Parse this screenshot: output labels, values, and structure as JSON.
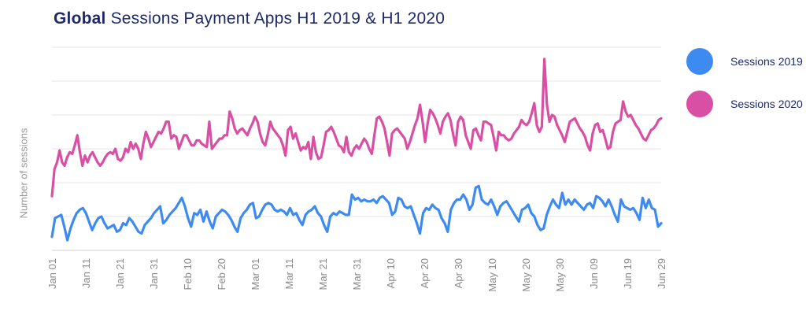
{
  "chart_data": {
    "type": "line",
    "title_bold": "Global",
    "title_rest": " Sessions Payment Apps H1 2019 & H1 2020",
    "xlabel": "",
    "ylabel": "Number of sessions",
    "ylim": [
      0,
      6
    ],
    "grid": true,
    "legend_position": "right",
    "tick_labels": [
      "Jan 01",
      "Jan 11",
      "Jan 21",
      "Jan 31",
      "Feb 10",
      "Feb 20",
      "Mar 01",
      "Mar 11",
      "Mar 21",
      "Mar 31",
      "Apr 10",
      "Apr 20",
      "Apr 30",
      "May 10",
      "May 20",
      "May 30",
      "Jun 09",
      "Jun 19",
      "Jun 29"
    ],
    "series": [
      {
        "name": "Sessions 2019",
        "color": "#3d8bf0",
        "values": [
          0.4,
          0.95,
          1.0,
          1.05,
          0.7,
          0.3,
          0.65,
          0.9,
          1.1,
          1.2,
          1.25,
          1.1,
          0.85,
          0.6,
          0.8,
          0.95,
          1.0,
          0.8,
          0.65,
          0.7,
          0.75,
          0.55,
          0.6,
          0.8,
          0.75,
          0.95,
          0.85,
          0.7,
          0.55,
          0.5,
          0.75,
          0.85,
          0.95,
          1.1,
          1.2,
          1.3,
          0.8,
          0.9,
          1.05,
          1.15,
          1.25,
          1.4,
          1.55,
          1.3,
          0.95,
          0.7,
          1.1,
          1.05,
          1.2,
          0.85,
          1.15,
          0.85,
          0.65,
          1.0,
          1.1,
          1.2,
          1.15,
          1.05,
          0.9,
          0.7,
          0.55,
          0.95,
          1.1,
          1.2,
          1.35,
          1.4,
          0.95,
          1.0,
          1.2,
          1.35,
          1.4,
          1.35,
          1.2,
          1.15,
          1.2,
          1.15,
          1.05,
          1.25,
          1.05,
          1.1,
          0.9,
          0.75,
          1.05,
          1.15,
          1.2,
          1.3,
          1.1,
          1.0,
          0.75,
          0.55,
          1.0,
          1.1,
          1.05,
          1.15,
          1.1,
          1.05,
          1.05,
          1.65,
          1.5,
          1.55,
          1.45,
          1.5,
          1.45,
          1.45,
          1.5,
          1.4,
          1.55,
          1.6,
          1.5,
          1.4,
          1.05,
          1.15,
          1.55,
          1.5,
          1.3,
          1.25,
          1.3,
          1.05,
          0.8,
          0.5,
          1.1,
          1.25,
          1.2,
          1.35,
          1.25,
          1.2,
          0.95,
          0.8,
          0.55,
          1.2,
          1.4,
          1.5,
          1.5,
          1.65,
          1.5,
          1.2,
          1.35,
          1.85,
          1.9,
          1.5,
          1.4,
          1.35,
          1.5,
          1.3,
          1.05,
          1.3,
          1.4,
          1.45,
          1.3,
          1.15,
          1.0,
          0.85,
          1.2,
          1.25,
          1.35,
          1.1,
          1.0,
          0.75,
          0.6,
          0.65,
          1.05,
          1.3,
          1.5,
          1.35,
          1.25,
          1.7,
          1.35,
          1.5,
          1.35,
          1.5,
          1.4,
          1.3,
          1.2,
          1.35,
          1.4,
          1.25,
          1.6,
          1.55,
          1.45,
          1.3,
          1.5,
          1.3,
          1.05,
          0.85,
          1.5,
          1.3,
          1.25,
          1.2,
          1.25,
          1.1,
          0.9,
          1.55,
          1.25,
          1.5,
          1.25,
          1.2,
          0.7,
          0.8
        ],
        "end_labels": [
          "Jan 01",
          "Jun 29"
        ]
      },
      {
        "name": "Sessions 2020",
        "color": "#d94fa4",
        "values": [
          1.6,
          2.4,
          2.6,
          2.95,
          2.6,
          2.5,
          2.75,
          2.9,
          2.85,
          3.1,
          3.4,
          2.9,
          2.5,
          2.8,
          2.6,
          2.8,
          2.9,
          2.75,
          2.6,
          2.5,
          2.6,
          2.75,
          2.85,
          2.9,
          2.85,
          3.0,
          2.7,
          2.65,
          2.75,
          3.0,
          2.9,
          3.2,
          3.0,
          3.15,
          3.0,
          2.7,
          3.15,
          3.5,
          3.3,
          3.05,
          3.2,
          3.35,
          3.5,
          3.45,
          3.6,
          3.8,
          3.8,
          3.3,
          3.4,
          3.35,
          3.0,
          3.2,
          3.4,
          3.4,
          3.25,
          3.1,
          3.1,
          3.25,
          3.25,
          3.15,
          3.1,
          3.05,
          3.8,
          3.0,
          3.1,
          3.2,
          3.3,
          3.3,
          3.4,
          3.4,
          4.1,
          3.9,
          3.6,
          3.45,
          3.55,
          3.6,
          3.5,
          3.4,
          3.6,
          3.75,
          3.95,
          3.8,
          3.45,
          3.2,
          3.1,
          3.4,
          3.8,
          3.6,
          3.5,
          3.4,
          3.3,
          3.1,
          2.8,
          3.55,
          3.65,
          3.3,
          3.45,
          3.2,
          2.95,
          3.05,
          3.0,
          3.2,
          2.7,
          3.35,
          2.9,
          2.7,
          2.75,
          3.1,
          3.5,
          3.55,
          3.65,
          3.5,
          3.3,
          3.1,
          3.05,
          2.9,
          3.35,
          2.9,
          2.8,
          3.0,
          3.1,
          3.0,
          3.15,
          3.3,
          3.2,
          3.0,
          2.85,
          3.4,
          3.9,
          3.95,
          3.8,
          3.6,
          3.2,
          2.8,
          3.45,
          3.55,
          3.6,
          3.5,
          3.4,
          3.3,
          3.0,
          3.2,
          3.45,
          3.7,
          3.9,
          4.3,
          3.8,
          3.2,
          3.75,
          4.15,
          4.05,
          3.9,
          3.7,
          3.45,
          3.8,
          3.95,
          4.05,
          3.85,
          3.45,
          3.1,
          3.8,
          3.95,
          3.85,
          3.4,
          3.2,
          3.0,
          3.55,
          3.6,
          3.4,
          3.25,
          3.8,
          3.8,
          3.75,
          3.7,
          3.35,
          2.95,
          3.5,
          3.4,
          3.4,
          3.3,
          3.25,
          3.3,
          3.45,
          3.55,
          3.65,
          3.85,
          3.75,
          3.7,
          3.8,
          4.05,
          4.35,
          3.7,
          3.5,
          3.65,
          5.65,
          4.3,
          3.8,
          4.0,
          3.95,
          3.7,
          3.55,
          3.4,
          3.2,
          3.5,
          3.8,
          3.85,
          3.9,
          3.75,
          3.6,
          3.5,
          3.35,
          3.1,
          2.95,
          3.45,
          3.7,
          3.75,
          3.5,
          3.55,
          3.3,
          3.0,
          3.05,
          3.5,
          3.75,
          3.8,
          3.85,
          4.4,
          4.1,
          3.95,
          4.0,
          3.85,
          3.7,
          3.6,
          3.45,
          3.3,
          3.25,
          3.4,
          3.55,
          3.6,
          3.7,
          3.85,
          3.9
        ]
      }
    ]
  }
}
